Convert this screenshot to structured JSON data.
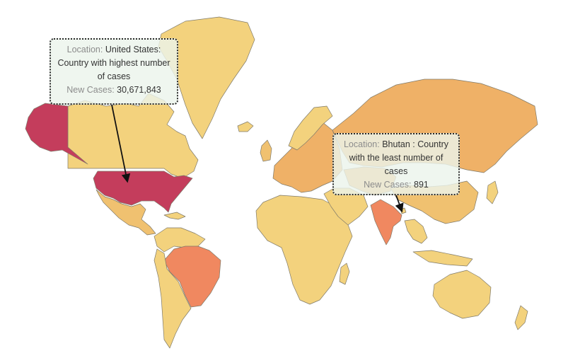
{
  "map": {
    "colors": {
      "very_low": "#f3d27d",
      "low": "#f0c170",
      "mid": "#efb167",
      "high_mid": "#f29a5e",
      "high": "#f08860",
      "highest": "#c43d5c",
      "ocean": "#ffffff",
      "border": "#7f7a6a"
    },
    "countries": [
      {
        "name": "United States",
        "level": "highest"
      },
      {
        "name": "Brazil",
        "level": "high"
      },
      {
        "name": "India",
        "level": "high"
      },
      {
        "name": "Russia",
        "level": "mid"
      },
      {
        "name": "Bhutan",
        "level": "very_low"
      }
    ]
  },
  "annotations": {
    "usa": {
      "location_label": "Location:",
      "location_value": "United States:",
      "description": "Country with highest number of cases",
      "cases_label": "New Cases:",
      "cases_value": "30,671,843"
    },
    "bhutan": {
      "location_label": "Location:",
      "location_value": "Bhutan : Country with the least number of cases",
      "cases_label": "New Cases:",
      "cases_value": "891"
    }
  }
}
